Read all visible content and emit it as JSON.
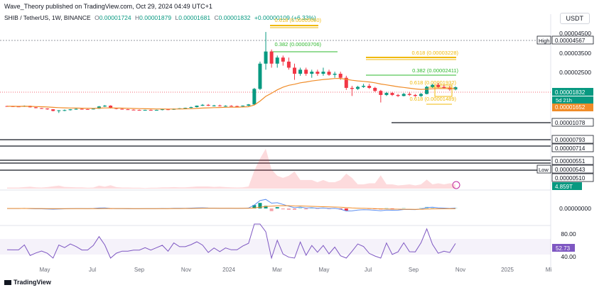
{
  "header": {
    "published": "Wave_Theory published on TradingView.com, Oct 29, 2024 04:49 UTC+1",
    "symbol": "SHIB / TetherUS, 1W, BINANCE",
    "ohlc": [
      {
        "label": "O",
        "value": "0.00001724"
      },
      {
        "label": "H",
        "value": "0.00001879"
      },
      {
        "label": "L",
        "value": "0.00001681"
      },
      {
        "label": "C",
        "value": "0.00001832"
      }
    ],
    "change": "+0.00000109 (+6.33%)",
    "currency": "USDT"
  },
  "footer": {
    "brand": "TradingView"
  },
  "colors": {
    "up": "#089981",
    "down": "#f23645",
    "ema": "#f08c28",
    "fib_gold": "#f0b90b",
    "fib_green": "#2eb82e",
    "rsi": "#7e57c2",
    "macd": "#5b8def",
    "signal": "#f08c28"
  },
  "chart_data": {
    "type": "candlestick",
    "price_axis": {
      "ticks": [
        "0.00004500",
        "0.00003500",
        "0.00002500"
      ],
      "right_labels": [
        {
          "text": "High",
          "badge": true,
          "value": "0.00004567"
        },
        {
          "text": "",
          "value": "0.00001832",
          "style": "current"
        },
        {
          "text": "",
          "value": "5d 21h",
          "style": "countdown"
        },
        {
          "text": "",
          "value": "0.00001652",
          "style": "ema"
        },
        {
          "text": "",
          "value": "0.00001078",
          "style": "box"
        },
        {
          "text": "",
          "value": "0.00000793",
          "style": "box"
        },
        {
          "text": "",
          "value": "0.00000714",
          "style": "box"
        },
        {
          "text": "",
          "value": "0.00000551",
          "style": "box"
        },
        {
          "text": "Low",
          "badge": true,
          "value": "0.00000543"
        },
        {
          "text": "",
          "value": "0.00000510",
          "style": "box"
        }
      ]
    },
    "time_axis": [
      "May",
      "Jul",
      "Sep",
      "Nov",
      "2024",
      "Mar",
      "May",
      "Jul",
      "Sep",
      "Nov",
      "2025",
      "Mi"
    ],
    "fib_levels": [
      {
        "text": "0.618 (0.00005660)",
        "color": "gold"
      },
      {
        "text": "0.382 (0.00003706)",
        "color": "green"
      },
      {
        "text": "0.618 (0.00003228)",
        "color": "gold"
      },
      {
        "text": "0.382 (0.00002411)",
        "color": "green"
      },
      {
        "text": "0.618 (0.00001932)",
        "color": "gold"
      },
      {
        "text": "0.618 (0.00001489)",
        "color": "gold"
      }
    ],
    "candles": [
      [
        9e-06,
        9.2e-06,
        8.7e-06,
        8.9e-06
      ],
      [
        8.9e-06,
        9.1e-06,
        8.6e-06,
        8.8e-06
      ],
      [
        8.8e-06,
        9e-06,
        8.5e-06,
        8.7e-06
      ],
      [
        8.7e-06,
        9.3e-06,
        8.6e-06,
        9.1e-06
      ],
      [
        9.1e-06,
        9.2e-06,
        8.3e-06,
        8.4e-06
      ],
      [
        8.4e-06,
        8.5e-06,
        7.9e-06,
        8e-06
      ],
      [
        8e-06,
        8.1e-06,
        7.6e-06,
        7.8e-06
      ],
      [
        7.8e-06,
        7.9e-06,
        7.2e-06,
        7.4e-06
      ],
      [
        7.4e-06,
        7.5e-06,
        6.4e-06,
        6.6e-06
      ],
      [
        6.6e-06,
        7e-06,
        5.6e-06,
        6.9e-06
      ],
      [
        6.9e-06,
        7.3e-06,
        6.5e-06,
        7e-06
      ],
      [
        7e-06,
        7.5e-06,
        6.8e-06,
        7.4e-06
      ],
      [
        7.4e-06,
        7.8e-06,
        7.2e-06,
        7.6e-06
      ],
      [
        7.6e-06,
        7.9e-06,
        7.3e-06,
        7.5e-06
      ],
      [
        7.5e-06,
        7.6e-06,
        7.2e-06,
        7.4e-06
      ],
      [
        7.4e-06,
        7.8e-06,
        7.3e-06,
        7.7e-06
      ],
      [
        7.7e-06,
        9e-06,
        7.6e-06,
        8.8e-06
      ],
      [
        8.8e-06,
        9.5e-06,
        8.6e-06,
        9.2e-06
      ],
      [
        9.2e-06,
        9.4e-06,
        7.8e-06,
        8e-06
      ],
      [
        8e-06,
        8.1e-06,
        7.4e-06,
        7.6e-06
      ],
      [
        7.6e-06,
        7.8e-06,
        7.3e-06,
        7.4e-06
      ],
      [
        7.4e-06,
        7.6e-06,
        7.1e-06,
        7.2e-06
      ],
      [
        7.2e-06,
        7.4e-06,
        7e-06,
        7.1e-06
      ],
      [
        7.1e-06,
        7.3e-06,
        6.9e-06,
        7e-06
      ],
      [
        7e-06,
        7.2e-06,
        6.9e-06,
        7.1e-06
      ],
      [
        7.1e-06,
        7.3e-06,
        6.9e-06,
        7e-06
      ],
      [
        7e-06,
        7.2e-06,
        6.8e-06,
        7.1e-06
      ],
      [
        7.1e-06,
        7.5e-06,
        6.9e-06,
        7.4e-06
      ],
      [
        7.4e-06,
        7.6e-06,
        7e-06,
        7.2e-06
      ],
      [
        7.2e-06,
        7.8e-06,
        7.1e-06,
        7.7e-06
      ],
      [
        7.7e-06,
        8e-06,
        7.4e-06,
        7.9e-06
      ],
      [
        7.9e-06,
        8.2e-06,
        7.6e-06,
        8.1e-06
      ],
      [
        8.1e-06,
        8.7e-06,
        7.9e-06,
        8.5e-06
      ],
      [
        8.5e-06,
        9.3e-06,
        8.3e-06,
        9.2e-06
      ],
      [
        9.2e-06,
        1e-05,
        9e-06,
        9.6e-06
      ],
      [
        9.6e-06,
        1e-05,
        9e-06,
        9.2e-06
      ],
      [
        9.2e-06,
        9.6e-06,
        8.8e-06,
        9.3e-06
      ],
      [
        9.3e-06,
        9.7e-06,
        8.8e-06,
        9e-06
      ],
      [
        9e-06,
        9.4e-06,
        8.7e-06,
        9.1e-06
      ],
      [
        9.1e-06,
        9.4e-06,
        8.8e-06,
        9e-06
      ],
      [
        9e-06,
        9.2e-06,
        8.7e-06,
        8.9e-06
      ],
      [
        8.9e-06,
        9.3e-06,
        8.7e-06,
        9.2e-06
      ],
      [
        9.2e-06,
        1e-05,
        9e-06,
        9.8e-06
      ],
      [
        9.8e-06,
        1.8e-05,
        9.6e-06,
        1.75e-05
      ],
      [
        1.75e-05,
        3.1e-05,
        1.7e-05,
        3e-05
      ],
      [
        3e-05,
        4.567e-05,
        2.7e-05,
        3.6e-05
      ],
      [
        3.6e-05,
        3.7e-05,
        2.8e-05,
        3e-05
      ],
      [
        3e-05,
        3.4e-05,
        2.8e-05,
        3.3e-05
      ],
      [
        3.3e-05,
        3.4e-05,
        2.9e-05,
        3.1e-05
      ],
      [
        3.1e-05,
        3.3e-05,
        2.7e-05,
        2.8e-05
      ],
      [
        2.8e-05,
        3e-05,
        2.2e-05,
        2.5e-05
      ],
      [
        2.5e-05,
        2.8e-05,
        2.4e-05,
        2.7e-05
      ],
      [
        2.7e-05,
        2.8e-05,
        2.4e-05,
        2.5e-05
      ],
      [
        2.5e-05,
        2.7e-05,
        2.3e-05,
        2.6e-05
      ],
      [
        2.6e-05,
        2.7e-05,
        2.4e-05,
        2.5e-05
      ],
      [
        2.5e-05,
        2.8e-05,
        2.4e-05,
        2.6e-05
      ],
      [
        2.6e-05,
        2.7e-05,
        2.4e-05,
        2.45e-05
      ],
      [
        2.45e-05,
        2.6e-05,
        2.3e-05,
        2.5e-05
      ],
      [
        2.5e-05,
        2.6e-05,
        2.2e-05,
        2.3e-05
      ],
      [
        2.3e-05,
        2.4e-05,
        1.7e-05,
        1.8e-05
      ],
      [
        1.8e-05,
        1.9e-05,
        1.4e-05,
        1.75e-05
      ],
      [
        1.75e-05,
        1.9e-05,
        1.7e-05,
        1.85e-05
      ],
      [
        1.85e-05,
        2e-05,
        1.8e-05,
        1.9e-05
      ],
      [
        1.9e-05,
        2e-05,
        1.75e-05,
        1.8e-05
      ],
      [
        1.8e-05,
        1.85e-05,
        1.6e-05,
        1.65e-05
      ],
      [
        1.65e-05,
        1.7e-05,
        1.078e-05,
        1.45e-05
      ],
      [
        1.45e-05,
        1.6e-05,
        1.4e-05,
        1.55e-05
      ],
      [
        1.55e-05,
        1.6e-05,
        1.4e-05,
        1.45e-05
      ],
      [
        1.45e-05,
        1.5e-05,
        1.35e-05,
        1.4e-05
      ],
      [
        1.4e-05,
        1.55e-05,
        1.38e-05,
        1.5e-05
      ],
      [
        1.5e-05,
        1.6e-05,
        1.4e-05,
        1.45e-05
      ],
      [
        1.45e-05,
        1.5e-05,
        1.35e-05,
        1.4e-05
      ],
      [
        1.4e-05,
        1.55e-05,
        1.35e-05,
        1.5e-05
      ],
      [
        1.5e-05,
        1.9e-05,
        1.48e-05,
        1.85e-05
      ],
      [
        1.85e-05,
        2e-05,
        1.8e-05,
        1.95e-05
      ],
      [
        1.95e-05,
        2.05e-05,
        1.8e-05,
        1.85e-05
      ],
      [
        1.85e-05,
        1.95e-05,
        1.75e-05,
        1.8e-05
      ],
      [
        1.8e-05,
        1.9e-05,
        1.65e-05,
        1.724e-05
      ],
      [
        1.724e-05,
        1.879e-05,
        1.681e-05,
        1.832e-05
      ]
    ],
    "volume_label": "4.859T",
    "macd_label": "0.00000000",
    "rsi": {
      "ticks": [
        "80.00",
        "40.00"
      ],
      "value": "52.73"
    }
  }
}
